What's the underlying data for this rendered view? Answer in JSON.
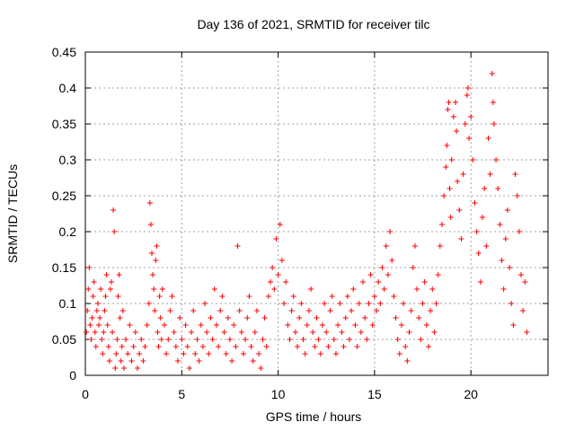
{
  "chart_data": {
    "type": "scatter",
    "title": "Day 136 of 2021, SRMTID for receiver tilc",
    "xlabel": "GPS time / hours",
    "ylabel": "SRMTID / TECUs",
    "xlim": [
      0,
      24
    ],
    "ylim": [
      0,
      0.45
    ],
    "x_ticks": [
      0,
      5,
      10,
      15,
      20
    ],
    "x_tick_labels": [
      "0",
      "5",
      "10",
      "15",
      "20"
    ],
    "y_ticks": [
      0,
      0.05,
      0.1,
      0.15,
      0.2,
      0.25,
      0.3,
      0.35,
      0.4,
      0.45
    ],
    "y_tick_labels": [
      "0",
      "0.05",
      "0.1",
      "0.15",
      "0.2",
      "0.25",
      "0.3",
      "0.35",
      "0.4",
      "0.45"
    ],
    "grid": true,
    "marker": "+",
    "series": [
      {
        "name": "SRMTID",
        "color": "#ff0000",
        "points": [
          [
            0.05,
            0.06
          ],
          [
            0.1,
            0.09
          ],
          [
            0.15,
            0.12
          ],
          [
            0.2,
            0.15
          ],
          [
            0.25,
            0.07
          ],
          [
            0.3,
            0.05
          ],
          [
            0.35,
            0.08
          ],
          [
            0.4,
            0.11
          ],
          [
            0.45,
            0.13
          ],
          [
            0.5,
            0.06
          ],
          [
            0.55,
            0.04
          ],
          [
            0.6,
            0.09
          ],
          [
            0.65,
            0.1
          ],
          [
            0.7,
            0.07
          ],
          [
            0.75,
            0.08
          ],
          [
            0.8,
            0.12
          ],
          [
            0.85,
            0.05
          ],
          [
            0.9,
            0.03
          ],
          [
            0.95,
            0.06
          ],
          [
            1.0,
            0.09
          ],
          [
            1.05,
            0.11
          ],
          [
            1.1,
            0.14
          ],
          [
            1.15,
            0.07
          ],
          [
            1.2,
            0.04
          ],
          [
            1.25,
            0.02
          ],
          [
            1.3,
            0.12
          ],
          [
            1.35,
            0.13
          ],
          [
            1.4,
            0.06
          ],
          [
            1.45,
            0.23
          ],
          [
            1.5,
            0.2
          ],
          [
            1.55,
            0.01
          ],
          [
            1.6,
            0.03
          ],
          [
            1.65,
            0.05
          ],
          [
            1.7,
            0.11
          ],
          [
            1.75,
            0.14
          ],
          [
            1.8,
            0.08
          ],
          [
            1.85,
            0.02
          ],
          [
            1.9,
            0.04
          ],
          [
            1.95,
            0.09
          ],
          [
            2.0,
            0.01
          ],
          [
            2.1,
            0.05
          ],
          [
            2.2,
            0.03
          ],
          [
            2.3,
            0.07
          ],
          [
            2.4,
            0.02
          ],
          [
            2.5,
            0.04
          ],
          [
            2.6,
            0.06
          ],
          [
            2.7,
            0.01
          ],
          [
            2.8,
            0.03
          ],
          [
            2.9,
            0.05
          ],
          [
            3.0,
            0.02
          ],
          [
            3.1,
            0.04
          ],
          [
            3.2,
            0.07
          ],
          [
            3.3,
            0.1
          ],
          [
            3.35,
            0.24
          ],
          [
            3.4,
            0.21
          ],
          [
            3.45,
            0.17
          ],
          [
            3.5,
            0.14
          ],
          [
            3.55,
            0.12
          ],
          [
            3.6,
            0.09
          ],
          [
            3.65,
            0.16
          ],
          [
            3.7,
            0.18
          ],
          [
            3.75,
            0.06
          ],
          [
            3.8,
            0.04
          ],
          [
            3.85,
            0.11
          ],
          [
            3.9,
            0.08
          ],
          [
            3.95,
            0.05
          ],
          [
            4.0,
            0.12
          ],
          [
            4.1,
            0.07
          ],
          [
            4.2,
            0.03
          ],
          [
            4.3,
            0.05
          ],
          [
            4.4,
            0.09
          ],
          [
            4.5,
            0.11
          ],
          [
            4.6,
            0.06
          ],
          [
            4.7,
            0.04
          ],
          [
            4.8,
            0.02
          ],
          [
            4.9,
            0.08
          ],
          [
            5.0,
            0.05
          ],
          [
            5.1,
            0.03
          ],
          [
            5.2,
            0.07
          ],
          [
            5.3,
            0.04
          ],
          [
            5.4,
            0.01
          ],
          [
            5.5,
            0.06
          ],
          [
            5.6,
            0.09
          ],
          [
            5.7,
            0.03
          ],
          [
            5.8,
            0.05
          ],
          [
            5.9,
            0.02
          ],
          [
            6.0,
            0.07
          ],
          [
            6.1,
            0.04
          ],
          [
            6.2,
            0.1
          ],
          [
            6.3,
            0.06
          ],
          [
            6.4,
            0.03
          ],
          [
            6.5,
            0.08
          ],
          [
            6.6,
            0.05
          ],
          [
            6.7,
            0.12
          ],
          [
            6.8,
            0.07
          ],
          [
            6.9,
            0.04
          ],
          [
            7.0,
            0.09
          ],
          [
            7.1,
            0.11
          ],
          [
            7.2,
            0.06
          ],
          [
            7.3,
            0.03
          ],
          [
            7.4,
            0.08
          ],
          [
            7.5,
            0.05
          ],
          [
            7.6,
            0.02
          ],
          [
            7.7,
            0.07
          ],
          [
            7.8,
            0.04
          ],
          [
            7.9,
            0.18
          ],
          [
            8.0,
            0.09
          ],
          [
            8.1,
            0.06
          ],
          [
            8.2,
            0.03
          ],
          [
            8.3,
            0.05
          ],
          [
            8.4,
            0.08
          ],
          [
            8.5,
            0.11
          ],
          [
            8.6,
            0.04
          ],
          [
            8.7,
            0.02
          ],
          [
            8.8,
            0.06
          ],
          [
            8.9,
            0.09
          ],
          [
            9.0,
            0.03
          ],
          [
            9.1,
            0.01
          ],
          [
            9.2,
            0.05
          ],
          [
            9.3,
            0.08
          ],
          [
            9.4,
            0.04
          ],
          [
            9.5,
            0.11
          ],
          [
            9.6,
            0.13
          ],
          [
            9.7,
            0.15
          ],
          [
            9.8,
            0.12
          ],
          [
            9.9,
            0.19
          ],
          [
            10.0,
            0.14
          ],
          [
            10.1,
            0.21
          ],
          [
            10.2,
            0.16
          ],
          [
            10.3,
            0.1
          ],
          [
            10.4,
            0.13
          ],
          [
            10.5,
            0.07
          ],
          [
            10.6,
            0.05
          ],
          [
            10.7,
            0.09
          ],
          [
            10.8,
            0.11
          ],
          [
            10.9,
            0.06
          ],
          [
            11.0,
            0.04
          ],
          [
            11.1,
            0.08
          ],
          [
            11.2,
            0.1
          ],
          [
            11.3,
            0.05
          ],
          [
            11.4,
            0.03
          ],
          [
            11.5,
            0.07
          ],
          [
            11.6,
            0.09
          ],
          [
            11.7,
            0.12
          ],
          [
            11.8,
            0.06
          ],
          [
            11.9,
            0.04
          ],
          [
            12.0,
            0.08
          ],
          [
            12.1,
            0.05
          ],
          [
            12.2,
            0.03
          ],
          [
            12.3,
            0.07
          ],
          [
            12.4,
            0.1
          ],
          [
            12.5,
            0.06
          ],
          [
            12.6,
            0.04
          ],
          [
            12.7,
            0.09
          ],
          [
            12.8,
            0.11
          ],
          [
            12.9,
            0.05
          ],
          [
            13.0,
            0.03
          ],
          [
            13.1,
            0.07
          ],
          [
            13.2,
            0.1
          ],
          [
            13.3,
            0.06
          ],
          [
            13.4,
            0.04
          ],
          [
            13.5,
            0.08
          ],
          [
            13.6,
            0.11
          ],
          [
            13.7,
            0.05
          ],
          [
            13.8,
            0.09
          ],
          [
            13.9,
            0.12
          ],
          [
            14.0,
            0.07
          ],
          [
            14.1,
            0.04
          ],
          [
            14.2,
            0.1
          ],
          [
            14.3,
            0.06
          ],
          [
            14.4,
            0.13
          ],
          [
            14.5,
            0.08
          ],
          [
            14.6,
            0.05
          ],
          [
            14.7,
            0.1
          ],
          [
            14.8,
            0.14
          ],
          [
            14.9,
            0.07
          ],
          [
            15.0,
            0.11
          ],
          [
            15.1,
            0.09
          ],
          [
            15.2,
            0.13
          ],
          [
            15.3,
            0.1
          ],
          [
            15.4,
            0.15
          ],
          [
            15.5,
            0.12
          ],
          [
            15.6,
            0.18
          ],
          [
            15.7,
            0.14
          ],
          [
            15.8,
            0.2
          ],
          [
            15.9,
            0.16
          ],
          [
            16.0,
            0.11
          ],
          [
            16.1,
            0.08
          ],
          [
            16.2,
            0.05
          ],
          [
            16.3,
            0.03
          ],
          [
            16.4,
            0.07
          ],
          [
            16.5,
            0.1
          ],
          [
            16.6,
            0.04
          ],
          [
            16.7,
            0.02
          ],
          [
            16.8,
            0.06
          ],
          [
            16.9,
            0.09
          ],
          [
            17.0,
            0.15
          ],
          [
            17.1,
            0.18
          ],
          [
            17.2,
            0.12
          ],
          [
            17.3,
            0.08
          ],
          [
            17.4,
            0.05
          ],
          [
            17.5,
            0.1
          ],
          [
            17.6,
            0.13
          ],
          [
            17.7,
            0.07
          ],
          [
            17.8,
            0.04
          ],
          [
            17.9,
            0.09
          ],
          [
            18.0,
            0.12
          ],
          [
            18.1,
            0.06
          ],
          [
            18.2,
            0.1
          ],
          [
            18.3,
            0.14
          ],
          [
            18.4,
            0.18
          ],
          [
            18.5,
            0.21
          ],
          [
            18.6,
            0.25
          ],
          [
            18.7,
            0.29
          ],
          [
            18.75,
            0.32
          ],
          [
            18.8,
            0.37
          ],
          [
            18.85,
            0.38
          ],
          [
            18.9,
            0.26
          ],
          [
            18.95,
            0.22
          ],
          [
            19.0,
            0.3
          ],
          [
            19.1,
            0.36
          ],
          [
            19.2,
            0.38
          ],
          [
            19.25,
            0.34
          ],
          [
            19.3,
            0.27
          ],
          [
            19.4,
            0.23
          ],
          [
            19.5,
            0.19
          ],
          [
            19.6,
            0.28
          ],
          [
            19.7,
            0.35
          ],
          [
            19.8,
            0.39
          ],
          [
            19.85,
            0.4
          ],
          [
            19.9,
            0.33
          ],
          [
            20.0,
            0.36
          ],
          [
            20.1,
            0.3
          ],
          [
            20.2,
            0.24
          ],
          [
            20.3,
            0.2
          ],
          [
            20.4,
            0.17
          ],
          [
            20.5,
            0.13
          ],
          [
            20.6,
            0.22
          ],
          [
            20.7,
            0.26
          ],
          [
            20.8,
            0.18
          ],
          [
            20.9,
            0.33
          ],
          [
            21.0,
            0.28
          ],
          [
            21.1,
            0.42
          ],
          [
            21.15,
            0.38
          ],
          [
            21.2,
            0.35
          ],
          [
            21.3,
            0.3
          ],
          [
            21.4,
            0.26
          ],
          [
            21.5,
            0.21
          ],
          [
            21.6,
            0.16
          ],
          [
            21.7,
            0.12
          ],
          [
            21.8,
            0.19
          ],
          [
            21.9,
            0.23
          ],
          [
            22.0,
            0.15
          ],
          [
            22.1,
            0.1
          ],
          [
            22.2,
            0.07
          ],
          [
            22.3,
            0.28
          ],
          [
            22.4,
            0.25
          ],
          [
            22.5,
            0.2
          ],
          [
            22.6,
            0.14
          ],
          [
            22.7,
            0.09
          ],
          [
            22.8,
            0.13
          ],
          [
            22.9,
            0.06
          ]
        ]
      }
    ]
  }
}
